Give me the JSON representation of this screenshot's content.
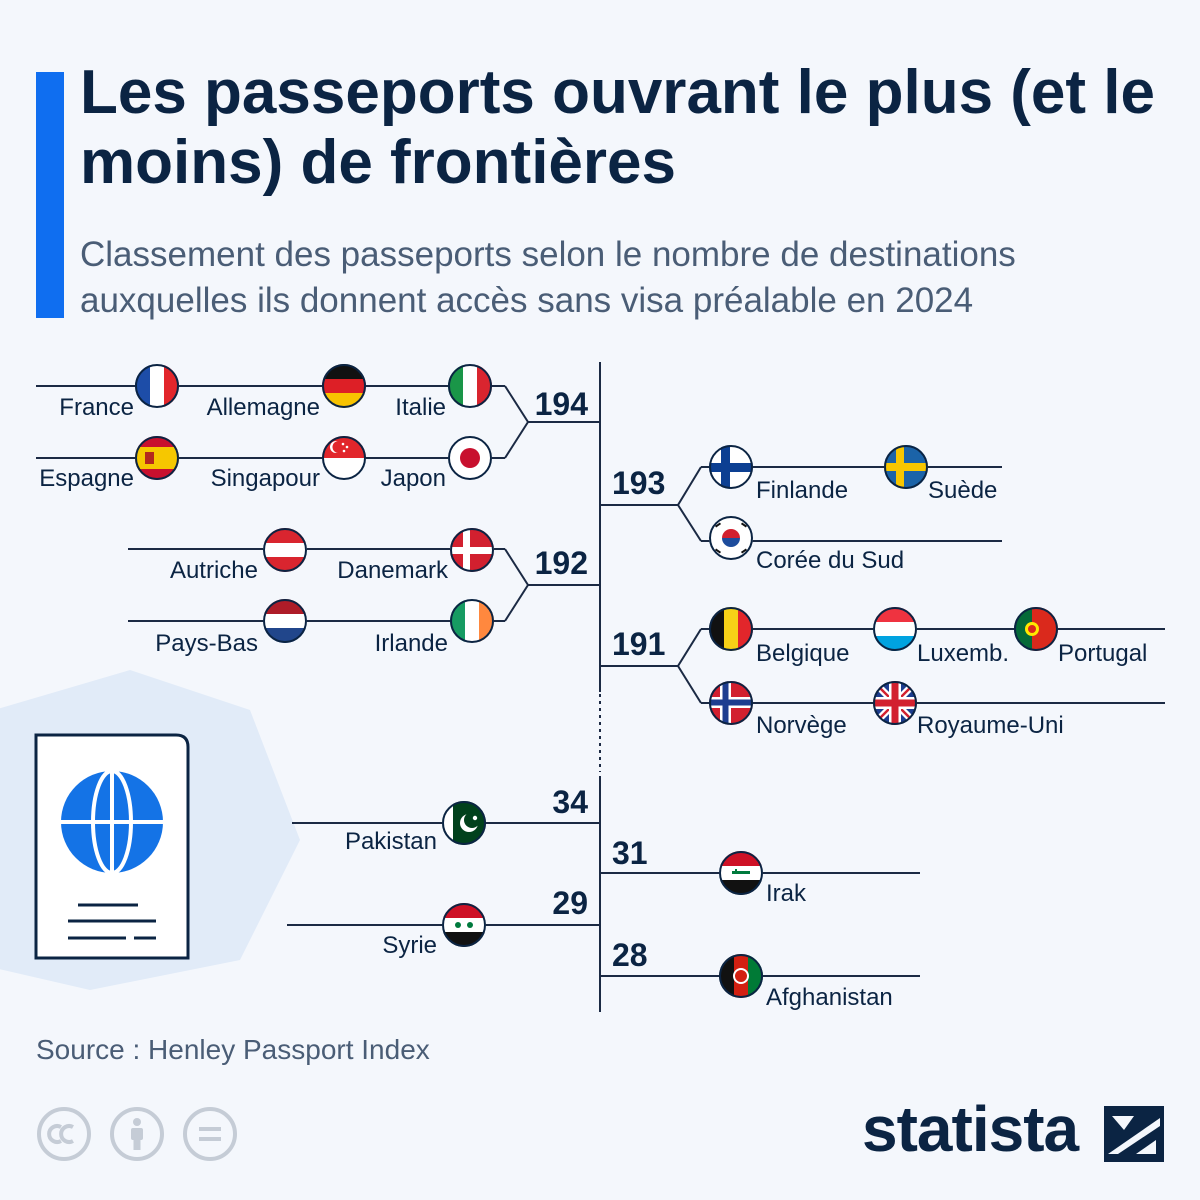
{
  "header": {
    "title": "Les passeports ouvrant le plus (et le moins) de frontières",
    "subtitle": "Classement des passeports selon le nombre de destinations auxquelles ils donnent accès sans visa préalable en 2024"
  },
  "chart_data": {
    "type": "bracket",
    "groups": [
      {
        "value": "194",
        "countries": [
          "France",
          "Allemagne",
          "Italie",
          "Espagne",
          "Singapour",
          "Japon"
        ]
      },
      {
        "value": "193",
        "countries": [
          "Finlande",
          "Suède",
          "Corée du Sud"
        ]
      },
      {
        "value": "192",
        "countries": [
          "Autriche",
          "Danemark",
          "Pays-Bas",
          "Irlande"
        ]
      },
      {
        "value": "191",
        "countries": [
          "Belgique",
          "Luxemb.",
          "Portugal",
          "Norvège",
          "Royaume-Uni"
        ]
      },
      {
        "value": "34",
        "countries": [
          "Pakistan"
        ]
      },
      {
        "value": "31",
        "countries": [
          "Irak"
        ]
      },
      {
        "value": "29",
        "countries": [
          "Syrie"
        ]
      },
      {
        "value": "28",
        "countries": [
          "Afghanistan"
        ]
      }
    ]
  },
  "footer": {
    "source": "Source : Henley Passport Index",
    "brand": "statista"
  },
  "colors": {
    "accent": "#0f6ef0",
    "text": "#0b2443",
    "muted": "#4a5d76",
    "line": "#1b2a44"
  }
}
